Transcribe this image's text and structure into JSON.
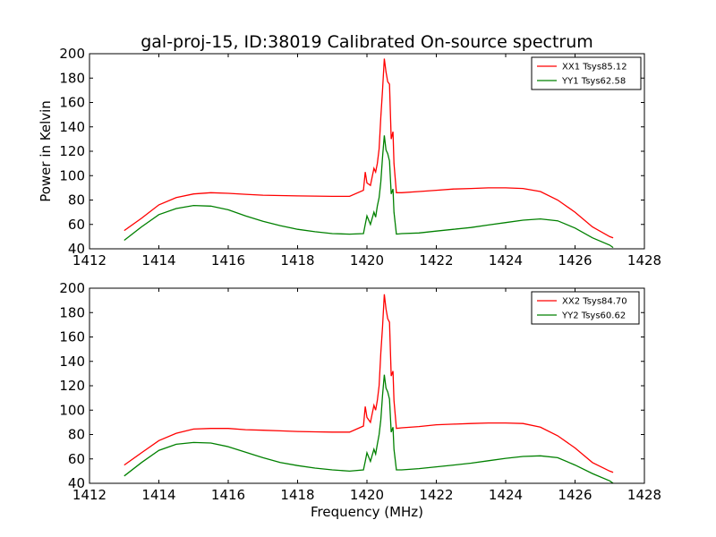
{
  "title": "gal-proj-15, ID:38019 Calibrated On-source spectrum",
  "ylabel": "Power in Kelvin",
  "xlabel": "Frequency (MHz)",
  "chart_data": [
    {
      "type": "line",
      "xlim": [
        1412,
        1428
      ],
      "ylim": [
        40,
        200
      ],
      "xticks": [
        1412,
        1414,
        1416,
        1418,
        1420,
        1422,
        1424,
        1426,
        1428
      ],
      "yticks": [
        40,
        60,
        80,
        100,
        120,
        140,
        160,
        180,
        200
      ],
      "grid": false,
      "legend_position": "top-right",
      "series": [
        {
          "name": "XX1 Tsys85.12",
          "color": "#ff0000",
          "x": [
            1413,
            1413.5,
            1414,
            1414.5,
            1415,
            1415.5,
            1416,
            1416.5,
            1417,
            1417.5,
            1418,
            1418.5,
            1419,
            1419.5,
            1419.9,
            1419.95,
            1420.0,
            1420.1,
            1420.2,
            1420.25,
            1420.3,
            1420.35,
            1420.4,
            1420.45,
            1420.5,
            1420.55,
            1420.6,
            1420.65,
            1420.7,
            1420.75,
            1420.78,
            1420.85,
            1421,
            1421.5,
            1422,
            1422.5,
            1423,
            1423.5,
            1424,
            1424.5,
            1425,
            1425.5,
            1426,
            1426.5,
            1427,
            1427.1
          ],
          "y": [
            55,
            65,
            76,
            82,
            85,
            86,
            85.5,
            84.7,
            84,
            83.7,
            83.4,
            83.2,
            83,
            83,
            88,
            103,
            94,
            92,
            106,
            103,
            110,
            122,
            148,
            170,
            196,
            185,
            177,
            175,
            130,
            136,
            110,
            86,
            86,
            87,
            88,
            89,
            89.5,
            90,
            90,
            89.5,
            87,
            80,
            70,
            58,
            50,
            49
          ]
        },
        {
          "name": "YY1 Tsys62.58",
          "color": "#008000",
          "x": [
            1413,
            1413.5,
            1414,
            1414.5,
            1415,
            1415.5,
            1416,
            1416.5,
            1417,
            1417.5,
            1418,
            1418.5,
            1419,
            1419.5,
            1419.9,
            1419.95,
            1420.0,
            1420.1,
            1420.2,
            1420.25,
            1420.3,
            1420.35,
            1420.4,
            1420.45,
            1420.5,
            1420.55,
            1420.6,
            1420.65,
            1420.7,
            1420.75,
            1420.78,
            1420.85,
            1421,
            1421.5,
            1422,
            1422.5,
            1423,
            1423.5,
            1424,
            1424.5,
            1425,
            1425.5,
            1426,
            1426.5,
            1427,
            1427.1
          ],
          "y": [
            47,
            58,
            68,
            73,
            75.5,
            75,
            72,
            67,
            62.5,
            59,
            56,
            54,
            52.5,
            52,
            52.5,
            60,
            67,
            60,
            70,
            66,
            75,
            82,
            95,
            115,
            133,
            121,
            118,
            112,
            85,
            89,
            70,
            52,
            52.5,
            53,
            54.5,
            56,
            57.5,
            59.5,
            61.5,
            63.5,
            64.5,
            63,
            57,
            49,
            43,
            41
          ]
        }
      ]
    },
    {
      "type": "line",
      "xlim": [
        1412,
        1428
      ],
      "ylim": [
        40,
        200
      ],
      "xticks": [
        1412,
        1414,
        1416,
        1418,
        1420,
        1422,
        1424,
        1426,
        1428
      ],
      "yticks": [
        40,
        60,
        80,
        100,
        120,
        140,
        160,
        180,
        200
      ],
      "grid": false,
      "legend_position": "top-right",
      "series": [
        {
          "name": "XX2 Tsys84.70",
          "color": "#ff0000",
          "x": [
            1413,
            1413.5,
            1414,
            1414.5,
            1415,
            1415.5,
            1416,
            1416.5,
            1417,
            1417.5,
            1418,
            1418.5,
            1419,
            1419.5,
            1419.9,
            1419.95,
            1420.0,
            1420.1,
            1420.2,
            1420.25,
            1420.3,
            1420.35,
            1420.4,
            1420.45,
            1420.5,
            1420.55,
            1420.6,
            1420.65,
            1420.7,
            1420.75,
            1420.78,
            1420.85,
            1421,
            1421.5,
            1422,
            1422.5,
            1423,
            1423.5,
            1424,
            1424.5,
            1425,
            1425.5,
            1426,
            1426.5,
            1427,
            1427.1
          ],
          "y": [
            55,
            65,
            75,
            81,
            84.5,
            85,
            85,
            84,
            83.5,
            83,
            82.5,
            82.2,
            82,
            82,
            87,
            103,
            94,
            90,
            104,
            100,
            108,
            120,
            147,
            168,
            195,
            183,
            175,
            172,
            128,
            132,
            108,
            85,
            85.5,
            86.5,
            88,
            88.5,
            89,
            89.5,
            89.5,
            89,
            86,
            79,
            69,
            57,
            50,
            49
          ]
        },
        {
          "name": "YY2 Tsys60.62",
          "color": "#008000",
          "x": [
            1413,
            1413.5,
            1414,
            1414.5,
            1415,
            1415.5,
            1416,
            1416.5,
            1417,
            1417.5,
            1418,
            1418.5,
            1419,
            1419.5,
            1419.9,
            1419.95,
            1420.0,
            1420.1,
            1420.2,
            1420.25,
            1420.3,
            1420.35,
            1420.4,
            1420.45,
            1420.5,
            1420.55,
            1420.6,
            1420.65,
            1420.7,
            1420.75,
            1420.78,
            1420.85,
            1421,
            1421.5,
            1422,
            1422.5,
            1423,
            1423.5,
            1424,
            1424.5,
            1425,
            1425.5,
            1426,
            1426.5,
            1427,
            1427.1
          ],
          "y": [
            46,
            57,
            67,
            72,
            73.5,
            73,
            70,
            65.5,
            61,
            57,
            54.5,
            52.5,
            51,
            50,
            51,
            58,
            65,
            58,
            68,
            64,
            72,
            80,
            92,
            112,
            129,
            118,
            115,
            109,
            82,
            86,
            68,
            51,
            51,
            52,
            53.5,
            55,
            56.5,
            58.5,
            60.5,
            62,
            62.5,
            61,
            55,
            48,
            42,
            40
          ]
        }
      ]
    }
  ]
}
